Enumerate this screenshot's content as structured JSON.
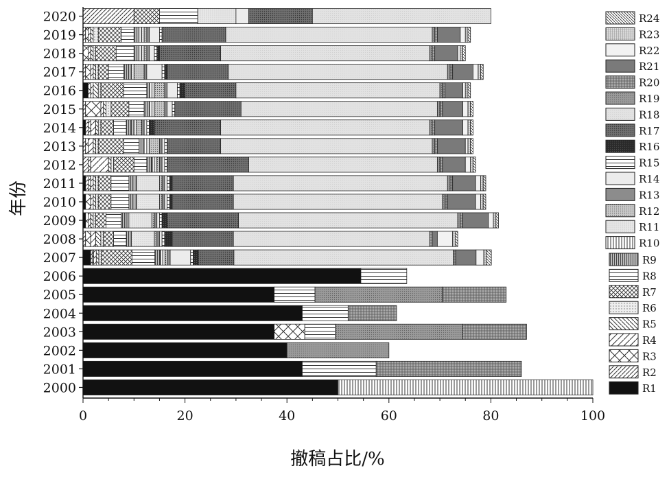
{
  "chart_data": {
    "type": "bar",
    "orientation": "horizontal",
    "stacked": true,
    "xlabel": "撤稿占比/%",
    "ylabel": "年份",
    "xlim": [
      0,
      100
    ],
    "xticks": [
      0,
      20,
      40,
      60,
      80,
      100
    ],
    "categories": [
      "2000",
      "2001",
      "2002",
      "2003",
      "2004",
      "2005",
      "2006",
      "2007",
      "2008",
      "2009",
      "2010",
      "2011",
      "2012",
      "2013",
      "2014",
      "2015",
      "2016",
      "2017",
      "2018",
      "2019",
      "2020"
    ],
    "legend_position": "right",
    "series": [
      {
        "name": "R1",
        "pattern": "solid-black",
        "values": [
          50.0,
          43.0,
          40.0,
          37.5,
          43.0,
          37.5,
          54.5,
          1.5,
          0,
          0.5,
          0.5,
          0.5,
          0,
          0,
          0.5,
          0,
          1.0,
          0,
          0,
          0,
          0
        ]
      },
      {
        "name": "R2",
        "pattern": "fdiag",
        "values": [
          0,
          0,
          0,
          0,
          0,
          0,
          0,
          0.3,
          0.5,
          0,
          0,
          0.5,
          1.0,
          0.5,
          0.5,
          0.5,
          0,
          0.5,
          0,
          0.5,
          10.0
        ]
      },
      {
        "name": "R3",
        "pattern": "cross",
        "values": [
          0,
          0,
          0,
          6.0,
          0,
          0,
          0,
          0.3,
          1.0,
          0.5,
          1.0,
          0.5,
          0.5,
          0.5,
          0.5,
          3.0,
          0.5,
          1.0,
          1.0,
          0.5,
          0
        ]
      },
      {
        "name": "R4",
        "pattern": "fdiag-wide",
        "values": [
          0,
          0,
          0,
          0,
          0,
          0,
          0,
          0.5,
          1.0,
          0.5,
          0.5,
          0.5,
          3.5,
          1.0,
          1.0,
          0.5,
          0.5,
          0.5,
          0.5,
          0.5,
          0
        ]
      },
      {
        "name": "R5",
        "pattern": "bdiag",
        "values": [
          0,
          0,
          0,
          0,
          0,
          0,
          0,
          0.5,
          1.0,
          0.5,
          0.5,
          0.5,
          0.5,
          0.5,
          0.5,
          0.5,
          1.0,
          0.5,
          0.5,
          0.5,
          0
        ]
      },
      {
        "name": "R6",
        "pattern": "dots",
        "values": [
          0,
          0,
          0,
          0,
          0,
          0,
          0,
          0.5,
          0.5,
          0.5,
          0.5,
          0.5,
          0.5,
          0.5,
          0.5,
          1.0,
          0.5,
          0.5,
          0.5,
          1.0,
          0
        ]
      },
      {
        "name": "R7",
        "pattern": "crosshatch",
        "values": [
          0,
          0,
          0,
          0,
          0,
          0,
          0,
          6.0,
          2.0,
          2.0,
          2.5,
          2.5,
          4.0,
          5.0,
          2.5,
          3.5,
          4.5,
          2.0,
          4.0,
          4.5,
          5.0
        ]
      },
      {
        "name": "R8",
        "pattern": "hlines",
        "values": [
          0,
          14.5,
          0,
          6.0,
          9.0,
          8.0,
          9.0,
          4.5,
          2.5,
          3.0,
          3.5,
          3.5,
          2.5,
          3.0,
          2.5,
          3.0,
          4.5,
          3.0,
          3.5,
          2.5,
          7.5
        ]
      },
      {
        "name": "R9",
        "pattern": "vlines-gray",
        "values": [
          0,
          0,
          0,
          0,
          0,
          0,
          0,
          1.0,
          0.5,
          1.0,
          1.0,
          1.0,
          1.0,
          1.0,
          1.0,
          1.0,
          0.5,
          1.0,
          1.0,
          1.0,
          0
        ]
      },
      {
        "name": "R10",
        "pattern": "vlines",
        "values": [
          50.0,
          0,
          0,
          0,
          0,
          0,
          0,
          0.5,
          0.5,
          0.5,
          0.5,
          0.5,
          0.5,
          0.5,
          0.5,
          0.5,
          0.5,
          0.5,
          0.5,
          0.5,
          0
        ]
      },
      {
        "name": "R11",
        "pattern": "fine-light",
        "values": [
          0,
          0,
          0,
          0,
          0,
          0,
          0,
          0.5,
          4.5,
          4.5,
          4.5,
          4.5,
          0.5,
          0.5,
          0.5,
          0.5,
          0.5,
          0.5,
          0.5,
          0.5,
          7.5
        ]
      },
      {
        "name": "R12",
        "pattern": "dense-dots",
        "values": [
          0,
          0,
          0,
          0,
          0,
          0,
          0,
          0.5,
          0.5,
          0.5,
          0.5,
          0.5,
          0.5,
          2.0,
          1.0,
          2.0,
          2.0,
          2.0,
          0.5,
          0.5,
          0
        ]
      },
      {
        "name": "R13",
        "pattern": "mid-gray",
        "values": [
          0,
          0,
          0,
          0,
          0,
          0,
          0,
          0.5,
          0.5,
          0.5,
          0.5,
          0.5,
          0.5,
          0.5,
          0.5,
          0.5,
          0.5,
          0.5,
          0.5,
          0.5,
          0
        ]
      },
      {
        "name": "R14",
        "pattern": "light",
        "values": [
          0,
          0,
          0,
          0,
          0,
          0,
          0,
          4.0,
          0.5,
          0.5,
          0.5,
          0.5,
          0.5,
          0.5,
          0.5,
          1.0,
          2.0,
          3.0,
          1.0,
          2.0,
          2.5
        ]
      },
      {
        "name": "R15",
        "pattern": "hlines",
        "values": [
          0,
          0,
          0,
          0,
          0,
          0,
          0,
          0.5,
          0.5,
          0.5,
          0.5,
          0.5,
          0.5,
          0.5,
          0.5,
          0.5,
          0.5,
          0.5,
          0.5,
          0.5,
          0
        ]
      },
      {
        "name": "R16",
        "pattern": "black-grain",
        "values": [
          0,
          0,
          0,
          0,
          0,
          0,
          0,
          1.0,
          1.5,
          1.0,
          0.5,
          0.5,
          0,
          0,
          1.0,
          0,
          1.0,
          0.5,
          0.5,
          0,
          0
        ]
      },
      {
        "name": "R17",
        "pattern": "dark-grain",
        "values": [
          0,
          0,
          0,
          0,
          0,
          0,
          0,
          7.0,
          12.0,
          14.0,
          12.0,
          12.0,
          16.0,
          10.5,
          13.0,
          13.0,
          10.0,
          12.0,
          12.0,
          12.5,
          12.5
        ]
      },
      {
        "name": "R18",
        "pattern": "light-grain",
        "values": [
          0,
          0,
          0,
          0,
          0,
          0,
          0,
          43.0,
          38.5,
          43.0,
          41.0,
          42.0,
          37.0,
          41.5,
          41.0,
          38.5,
          40.0,
          43.0,
          41.0,
          40.5,
          35.0
        ]
      },
      {
        "name": "R19",
        "pattern": "mid-grain",
        "values": [
          0,
          0,
          20.0,
          25.0,
          0,
          25.0,
          0,
          0,
          0,
          0.5,
          0.5,
          0.5,
          0.5,
          0.5,
          0.5,
          0.5,
          0.5,
          0.5,
          0.5,
          0.5,
          0
        ]
      },
      {
        "name": "R20",
        "pattern": "grid",
        "values": [
          0,
          28.5,
          0,
          12.5,
          9.5,
          12.5,
          0,
          0.5,
          0.5,
          0.5,
          0.5,
          0.5,
          0.5,
          0.5,
          0.5,
          0.5,
          0.5,
          0.5,
          0.5,
          0.5,
          0
        ]
      },
      {
        "name": "R21",
        "pattern": "dark-gray",
        "values": [
          0,
          0,
          0,
          0,
          0,
          0,
          0,
          4.0,
          1.0,
          5.0,
          5.5,
          4.5,
          4.5,
          5.5,
          5.5,
          4.0,
          3.5,
          4.0,
          4.5,
          4.5,
          0
        ]
      },
      {
        "name": "R22",
        "pattern": "very-light",
        "values": [
          0,
          0,
          0,
          0,
          0,
          0,
          0,
          1.5,
          3.0,
          1.0,
          1.0,
          1.0,
          1.0,
          0.5,
          1.0,
          1.0,
          0.5,
          1.0,
          0.5,
          1.0,
          0
        ]
      },
      {
        "name": "R23",
        "pattern": "fine-grid",
        "values": [
          0,
          0,
          0,
          0,
          0,
          0,
          0,
          0.5,
          0.5,
          0.5,
          0.5,
          0.5,
          0.5,
          0.5,
          0.5,
          0.5,
          0.5,
          0.5,
          0.5,
          0.5,
          0
        ]
      },
      {
        "name": "R24",
        "pattern": "bdiag-fine",
        "values": [
          0,
          0,
          0,
          0,
          0,
          0,
          0,
          1.0,
          0.5,
          0.5,
          0.5,
          0.5,
          0.5,
          0.5,
          0.5,
          0.5,
          0.5,
          0.5,
          0.5,
          0.5,
          0
        ]
      }
    ]
  }
}
